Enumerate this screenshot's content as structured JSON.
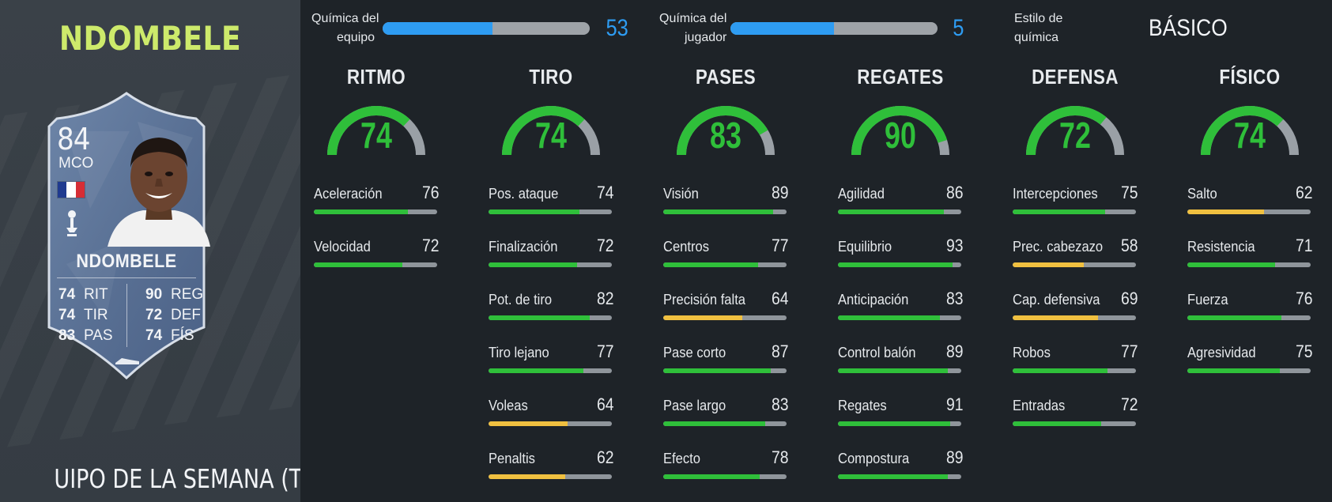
{
  "player": {
    "name": "NDOMBELE",
    "card_name": "NDOMBELE",
    "rating": "84",
    "position": "MCO",
    "program": "UIPO DE LA SEMANA (TOTW)",
    "nation_flag_colors": [
      "#1f3a8f",
      "#ffffff",
      "#d62d35"
    ],
    "card_stats_left": [
      {
        "value": "74",
        "label": "RIT"
      },
      {
        "value": "74",
        "label": "TIR"
      },
      {
        "value": "83",
        "label": "PAS"
      }
    ],
    "card_stats_right": [
      {
        "value": "90",
        "label": "REG"
      },
      {
        "value": "72",
        "label": "DEF"
      },
      {
        "value": "74",
        "label": "FÍS"
      }
    ],
    "icons": {
      "club": "tottenham-crest-icon",
      "boot": "boot-icon"
    }
  },
  "chemistry": {
    "team": {
      "label_line1": "Química del",
      "label_line2": "equipo",
      "value": "53",
      "fill_fraction": 0.53
    },
    "player": {
      "label_line1": "Química del",
      "label_line2": "jugador",
      "value": "5",
      "fill_fraction": 0.5
    },
    "style": {
      "label_line1": "Estilo de",
      "label_line2": "química",
      "value": "BÁSICO"
    }
  },
  "colors": {
    "accent_blue": "#2e9cf2",
    "stat_green": "#2fbf3a",
    "stat_yellow": "#f0c040",
    "bar_track": "#8f959b",
    "title_lime": "#cdea6b"
  },
  "categories": [
    {
      "title": "RITMO",
      "value": "74",
      "fraction": 0.74,
      "stats": [
        {
          "name": "Aceleración",
          "value": "76",
          "fraction": 0.76,
          "color": "#2fbf3a"
        },
        {
          "name": "Velocidad",
          "value": "72",
          "fraction": 0.72,
          "color": "#2fbf3a"
        }
      ]
    },
    {
      "title": "TIRO",
      "value": "74",
      "fraction": 0.74,
      "stats": [
        {
          "name": "Pos. ataque",
          "value": "74",
          "fraction": 0.74,
          "color": "#2fbf3a"
        },
        {
          "name": "Finalización",
          "value": "72",
          "fraction": 0.72,
          "color": "#2fbf3a"
        },
        {
          "name": "Pot. de tiro",
          "value": "82",
          "fraction": 0.82,
          "color": "#2fbf3a"
        },
        {
          "name": "Tiro lejano",
          "value": "77",
          "fraction": 0.77,
          "color": "#2fbf3a"
        },
        {
          "name": "Voleas",
          "value": "64",
          "fraction": 0.64,
          "color": "#f0c040"
        },
        {
          "name": "Penaltis",
          "value": "62",
          "fraction": 0.62,
          "color": "#f0c040"
        }
      ]
    },
    {
      "title": "PASES",
      "value": "83",
      "fraction": 0.83,
      "stats": [
        {
          "name": "Visión",
          "value": "89",
          "fraction": 0.89,
          "color": "#2fbf3a"
        },
        {
          "name": "Centros",
          "value": "77",
          "fraction": 0.77,
          "color": "#2fbf3a"
        },
        {
          "name": "Precisión falta",
          "value": "64",
          "fraction": 0.64,
          "color": "#f0c040"
        },
        {
          "name": "Pase corto",
          "value": "87",
          "fraction": 0.87,
          "color": "#2fbf3a"
        },
        {
          "name": "Pase largo",
          "value": "83",
          "fraction": 0.83,
          "color": "#2fbf3a"
        },
        {
          "name": "Efecto",
          "value": "78",
          "fraction": 0.78,
          "color": "#2fbf3a"
        }
      ]
    },
    {
      "title": "REGATES",
      "value": "90",
      "fraction": 0.9,
      "stats": [
        {
          "name": "Agilidad",
          "value": "86",
          "fraction": 0.86,
          "color": "#2fbf3a"
        },
        {
          "name": "Equilibrio",
          "value": "93",
          "fraction": 0.93,
          "color": "#2fbf3a"
        },
        {
          "name": "Anticipación",
          "value": "83",
          "fraction": 0.83,
          "color": "#2fbf3a"
        },
        {
          "name": "Control balón",
          "value": "89",
          "fraction": 0.89,
          "color": "#2fbf3a"
        },
        {
          "name": "Regates",
          "value": "91",
          "fraction": 0.91,
          "color": "#2fbf3a"
        },
        {
          "name": "Compostura",
          "value": "89",
          "fraction": 0.89,
          "color": "#2fbf3a"
        }
      ]
    },
    {
      "title": "DEFENSA",
      "value": "72",
      "fraction": 0.72,
      "stats": [
        {
          "name": "Intercepciones",
          "value": "75",
          "fraction": 0.75,
          "color": "#2fbf3a"
        },
        {
          "name": "Prec. cabezazo",
          "value": "58",
          "fraction": 0.58,
          "color": "#f0c040"
        },
        {
          "name": "Cap. defensiva",
          "value": "69",
          "fraction": 0.69,
          "color": "#f0c040"
        },
        {
          "name": "Robos",
          "value": "77",
          "fraction": 0.77,
          "color": "#2fbf3a"
        },
        {
          "name": "Entradas",
          "value": "72",
          "fraction": 0.72,
          "color": "#2fbf3a"
        }
      ]
    },
    {
      "title": "FÍSICO",
      "value": "74",
      "fraction": 0.74,
      "stats": [
        {
          "name": "Salto",
          "value": "62",
          "fraction": 0.62,
          "color": "#f0c040"
        },
        {
          "name": "Resistencia",
          "value": "71",
          "fraction": 0.71,
          "color": "#2fbf3a"
        },
        {
          "name": "Fuerza",
          "value": "76",
          "fraction": 0.76,
          "color": "#2fbf3a"
        },
        {
          "name": "Agresividad",
          "value": "75",
          "fraction": 0.75,
          "color": "#2fbf3a"
        }
      ]
    }
  ]
}
